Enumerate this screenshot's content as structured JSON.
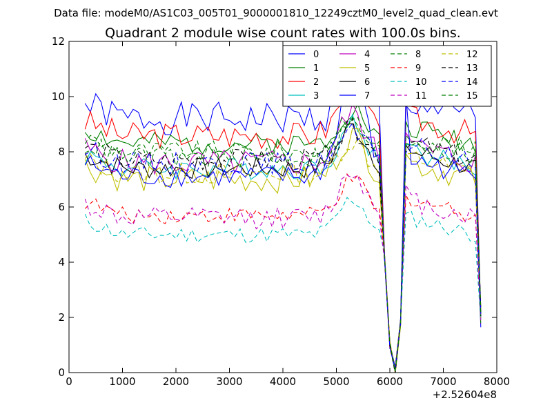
{
  "figure": {
    "suptitle": "Data file: modeM0/AS1C03_005T01_9000001810_12249cztM0_level2_quad_clean.evt"
  },
  "chart_data": {
    "type": "line",
    "title": "Quadrant 2 module wise count rates with 100.0s bins.",
    "xlabel": "",
    "ylabel": "",
    "offset_label": "+2.52604e8",
    "xlim": [
      0,
      8000
    ],
    "ylim": [
      0,
      12
    ],
    "xticks": [
      0,
      1000,
      2000,
      3000,
      4000,
      5000,
      6000,
      7000,
      8000
    ],
    "yticks": [
      0,
      2,
      4,
      6,
      8,
      10,
      12
    ],
    "grid": false,
    "legend_position": "upper-right",
    "legend_columns": 4,
    "x": [
      300,
      400,
      500,
      600,
      700,
      800,
      900,
      1000,
      1100,
      1200,
      1300,
      1400,
      1500,
      1600,
      1700,
      1800,
      1900,
      2000,
      2100,
      2200,
      2300,
      2400,
      2500,
      2600,
      2700,
      2800,
      2900,
      3000,
      3100,
      3200,
      3300,
      3400,
      3500,
      3600,
      3700,
      3800,
      3900,
      4000,
      4100,
      4200,
      4300,
      4400,
      4500,
      4600,
      4700,
      4800,
      4900,
      5000,
      5100,
      5200,
      5300,
      5400,
      5500,
      5600,
      5700,
      5800,
      5900,
      6000,
      6100,
      6200,
      6300,
      6400,
      6500,
      6600,
      6700,
      6800,
      6900,
      7000,
      7100,
      7200,
      7300,
      7400,
      7500,
      7600,
      7700
    ],
    "series": [
      {
        "name": "0",
        "color": "#0000ff",
        "dash": "solid",
        "base": 9.2,
        "wave": 0.6,
        "peak": 10.2,
        "seed": 1
      },
      {
        "name": "1",
        "color": "#008000",
        "dash": "solid",
        "base": 8.3,
        "wave": 0.4,
        "peak": 9.6,
        "seed": 2
      },
      {
        "name": "2",
        "color": "#ff0000",
        "dash": "solid",
        "base": 8.6,
        "wave": 0.5,
        "peak": 10.4,
        "seed": 3
      },
      {
        "name": "3",
        "color": "#00bfbf",
        "dash": "solid",
        "base": 7.4,
        "wave": 0.4,
        "peak": 9.0,
        "seed": 4
      },
      {
        "name": "4",
        "color": "#bf00bf",
        "dash": "solid",
        "base": 7.6,
        "wave": 0.5,
        "peak": 9.4,
        "seed": 5
      },
      {
        "name": "5",
        "color": "#bfbf00",
        "dash": "solid",
        "base": 7.0,
        "wave": 0.5,
        "peak": 8.6,
        "seed": 6
      },
      {
        "name": "6",
        "color": "#000000",
        "dash": "solid",
        "base": 7.4,
        "wave": 0.4,
        "peak": 8.9,
        "seed": 7
      },
      {
        "name": "7",
        "color": "#0000ff",
        "dash": "solid",
        "base": 7.1,
        "wave": 0.4,
        "peak": 10.7,
        "seed": 8
      },
      {
        "name": "8",
        "color": "#008000",
        "dash": "dash",
        "base": 8.0,
        "wave": 0.4,
        "peak": 9.2,
        "seed": 9
      },
      {
        "name": "9",
        "color": "#ff0000",
        "dash": "dash",
        "base": 5.7,
        "wave": 0.3,
        "peak": 7.0,
        "seed": 10
      },
      {
        "name": "10",
        "color": "#00bfbf",
        "dash": "dash",
        "base": 5.0,
        "wave": 0.3,
        "peak": 6.3,
        "seed": 11
      },
      {
        "name": "11",
        "color": "#bf00bf",
        "dash": "dash",
        "base": 5.6,
        "wave": 0.4,
        "peak": 7.3,
        "seed": 12
      },
      {
        "name": "12",
        "color": "#bfbf00",
        "dash": "dash",
        "base": 7.2,
        "wave": 0.4,
        "peak": 8.4,
        "seed": 13
      },
      {
        "name": "13",
        "color": "#000000",
        "dash": "dash",
        "base": 7.7,
        "wave": 0.4,
        "peak": 8.8,
        "seed": 14
      },
      {
        "name": "14",
        "color": "#0000ff",
        "dash": "dash",
        "base": 7.6,
        "wave": 0.4,
        "peak": 8.7,
        "seed": 15
      },
      {
        "name": "15",
        "color": "#008000",
        "dash": "dash",
        "base": 7.8,
        "wave": 0.4,
        "peak": 9.0,
        "seed": 16
      }
    ]
  }
}
